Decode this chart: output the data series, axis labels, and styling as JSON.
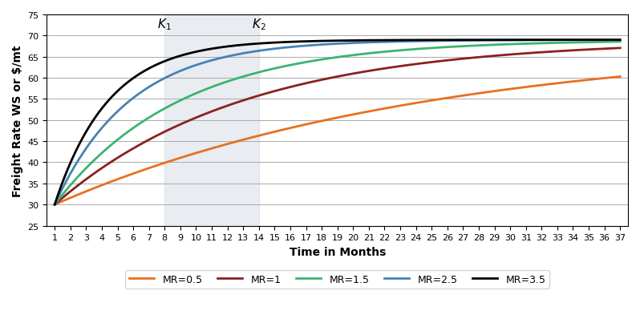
{
  "title": "",
  "xlabel": "Time in Months",
  "ylabel": "Freight Rate WS or $/mt",
  "xlim": [
    1,
    37
  ],
  "ylim": [
    25,
    75
  ],
  "xticks": [
    1,
    2,
    3,
    4,
    5,
    6,
    7,
    8,
    9,
    10,
    11,
    12,
    13,
    14,
    15,
    16,
    17,
    18,
    19,
    20,
    21,
    22,
    23,
    24,
    25,
    26,
    27,
    28,
    29,
    30,
    31,
    32,
    33,
    34,
    35,
    36,
    37
  ],
  "yticks": [
    25,
    30,
    35,
    40,
    45,
    50,
    55,
    60,
    65,
    70,
    75
  ],
  "start_value": 30,
  "long_run_mean": 69,
  "mr_rates": [
    0.5,
    1.0,
    1.5,
    2.5,
    3.5
  ],
  "mr_colors": [
    "#E87020",
    "#8B2020",
    "#3CB371",
    "#4682B4",
    "#000000"
  ],
  "mr_labels": [
    "MR=0.5",
    "MR=1",
    "MR=1.5",
    "MR=2.5",
    "MR=3.5"
  ],
  "k1_month": 8,
  "k2_month": 14,
  "shade_color": "#C8D0DC",
  "shade_alpha": 0.4,
  "background_color": "#FFFFFF",
  "grid_color": "#AAAAAA",
  "line_width": 2.0,
  "tick_fontsize": 8,
  "label_fontsize": 10,
  "legend_fontsize": 9
}
